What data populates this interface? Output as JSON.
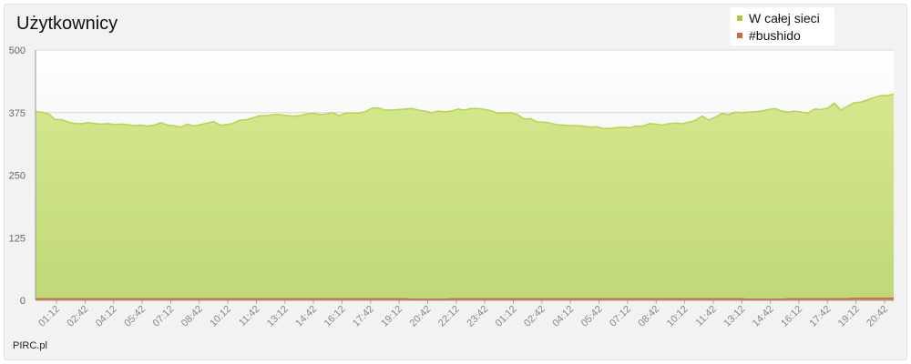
{
  "title": "Użytkownicy",
  "credit": "PIRC.pl",
  "legend": [
    {
      "label": "W całej sieci",
      "color": "#a8cc3a"
    },
    {
      "label": "#bushido",
      "color": "#d2693c"
    }
  ],
  "chart_data": {
    "type": "area",
    "title": "Użytkownicy",
    "xlabel": "",
    "ylabel": "",
    "ylim": [
      0,
      500
    ],
    "yticks": [
      "0",
      "125",
      "250",
      "375",
      "500"
    ],
    "xticks": [
      "01:12",
      "02:42",
      "04:12",
      "05:42",
      "07:12",
      "08:42",
      "10:12",
      "11:42",
      "13:12",
      "14:42",
      "16:12",
      "17:42",
      "19:12",
      "20:42",
      "22:12",
      "23:42",
      "01:12",
      "02:42",
      "04:12",
      "05:42",
      "07:12",
      "08:42",
      "10:12",
      "11:42",
      "13:12",
      "14:42",
      "16:12",
      "17:42",
      "19:12",
      "20:42"
    ],
    "grid": true,
    "legend_position": "top-right",
    "series": [
      {
        "name": "W całej sieci",
        "color": "#a8cc3a",
        "values": [
          377,
          376,
          372,
          361,
          361,
          356,
          353,
          353,
          355,
          353,
          352,
          353,
          351,
          352,
          351,
          349,
          350,
          348,
          350,
          355,
          350,
          349,
          346,
          352,
          348,
          351,
          354,
          357,
          350,
          351,
          354,
          360,
          361,
          365,
          369,
          369,
          371,
          371,
          369,
          368,
          369,
          372,
          374,
          371,
          372,
          375,
          369,
          374,
          374,
          374,
          377,
          384,
          384,
          380,
          380,
          381,
          382,
          383,
          380,
          378,
          375,
          378,
          377,
          378,
          382,
          380,
          383,
          383,
          381,
          379,
          374,
          374,
          375,
          371,
          362,
          363,
          356,
          356,
          354,
          351,
          350,
          349,
          349,
          348,
          346,
          347,
          343,
          343,
          345,
          346,
          345,
          348,
          348,
          353,
          352,
          350,
          353,
          354,
          353,
          356,
          360,
          368,
          360,
          366,
          373,
          371,
          376,
          375,
          376,
          377,
          378,
          381,
          383,
          378,
          376,
          378,
          376,
          374,
          382,
          381,
          384,
          394,
          380,
          388,
          395,
          396,
          400,
          405,
          409,
          409,
          412
        ]
      },
      {
        "name": "#bushido",
        "color": "#d2693c",
        "values": [
          3,
          3,
          3,
          3,
          3,
          3,
          3,
          3,
          3,
          3,
          3,
          3,
          3,
          3,
          3,
          3,
          3,
          3,
          3,
          3,
          3,
          3,
          3,
          3,
          3,
          3,
          3,
          3,
          3,
          3,
          3,
          3,
          3,
          3,
          3,
          3,
          3,
          3,
          3,
          3,
          3,
          3,
          3,
          3,
          3,
          3,
          3,
          3,
          3,
          3,
          3,
          3,
          3,
          3,
          3,
          3,
          3,
          2,
          2,
          2,
          2,
          2,
          2,
          3,
          3,
          3,
          3,
          3,
          3,
          3,
          3,
          3,
          3,
          3,
          3,
          3,
          3,
          3,
          3,
          3,
          3,
          3,
          3,
          3,
          3,
          3,
          3,
          3,
          3,
          3,
          3,
          3,
          3,
          3,
          3,
          3,
          3,
          3,
          3,
          3,
          3,
          3,
          3,
          3,
          3,
          3,
          3,
          3,
          2,
          2,
          2,
          2,
          2,
          2,
          3,
          3,
          3,
          3,
          3,
          3,
          3,
          3,
          3,
          3,
          4,
          4,
          4,
          4,
          4,
          4,
          4
        ]
      }
    ]
  }
}
